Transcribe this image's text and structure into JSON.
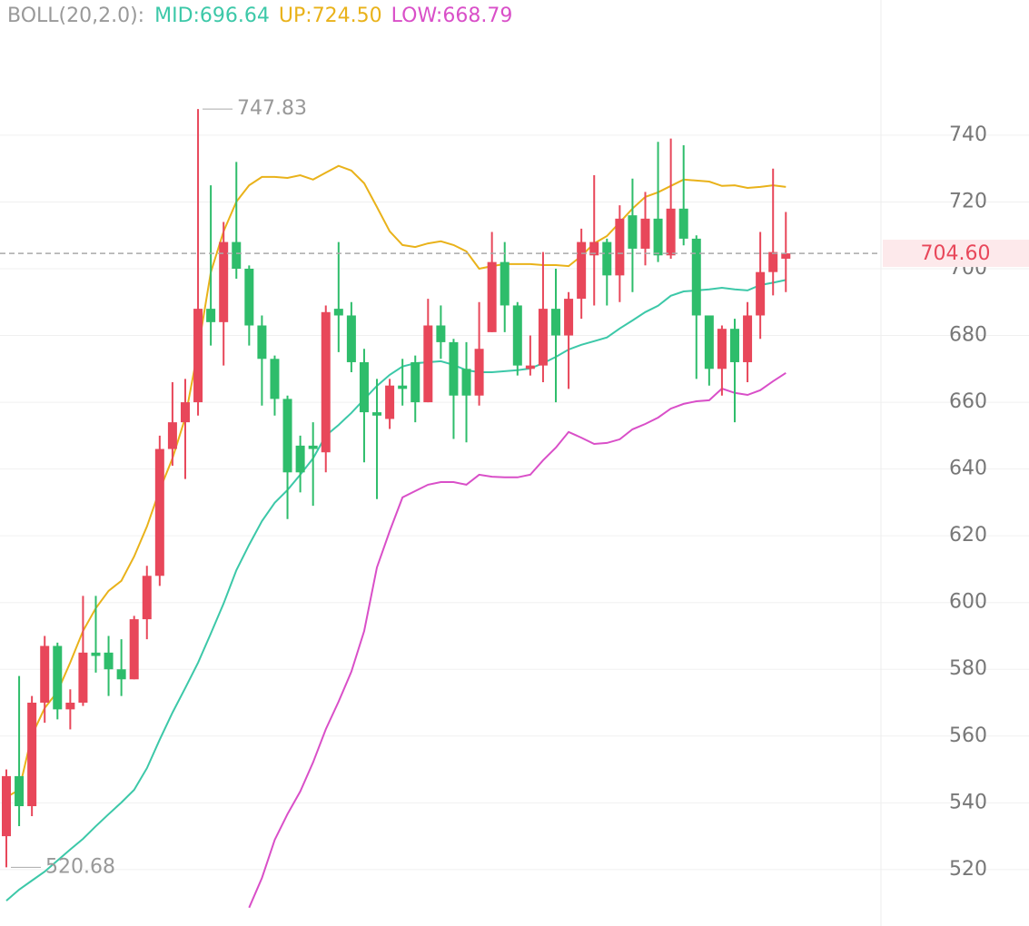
{
  "chart_data": {
    "type": "candlestick",
    "indicator": "BOLL(20,2.0):",
    "ylim": [
      503.1,
      780.5
    ],
    "yticks": [
      520,
      540,
      560,
      580,
      600,
      620,
      640,
      660,
      680,
      700,
      720,
      740
    ],
    "grid": true,
    "up_color": "#e8475a",
    "down_color": "#2ebd6b",
    "open": [
      530,
      548,
      539,
      570,
      587,
      568,
      570,
      585,
      585,
      580,
      577,
      595,
      608,
      646,
      654,
      660,
      688,
      684,
      708,
      700,
      683,
      673,
      661,
      647,
      647,
      645,
      688,
      686,
      672,
      657,
      655,
      665,
      672,
      660,
      683,
      678,
      670,
      662,
      681,
      702,
      689,
      670,
      671,
      688,
      680,
      691,
      704,
      708,
      698,
      716,
      706,
      715,
      704,
      718,
      709,
      686,
      670,
      682,
      672,
      686,
      699,
      703
    ],
    "high": [
      550,
      578,
      572,
      590,
      588,
      574,
      602,
      602,
      590,
      589,
      596,
      611,
      650,
      666,
      667,
      747.83,
      725,
      714,
      732,
      701,
      686,
      674,
      662,
      650,
      654,
      689,
      708,
      690,
      676,
      667,
      667,
      673,
      674,
      691,
      689,
      679,
      678,
      690,
      711,
      708,
      690,
      680,
      705,
      700,
      693,
      712,
      728,
      709,
      719,
      727,
      723,
      738,
      739,
      737,
      710,
      686,
      683,
      685,
      690,
      711,
      730,
      717
    ],
    "low": [
      520.68,
      533,
      536,
      564,
      565,
      562,
      569,
      579,
      572,
      572,
      577,
      589,
      605,
      641,
      637,
      656,
      677,
      671,
      697,
      677,
      659,
      656,
      625,
      633,
      629,
      639,
      675,
      669,
      642,
      631,
      652,
      659,
      654,
      660,
      673,
      649,
      648,
      659,
      681,
      681,
      668,
      668,
      666,
      660,
      664,
      685,
      689,
      689,
      690,
      693,
      701,
      702,
      703,
      707,
      667,
      665,
      662,
      654,
      666,
      679,
      692,
      693
    ],
    "close": [
      548,
      539,
      570,
      587,
      568,
      570,
      585,
      584,
      580,
      577,
      595,
      608,
      646,
      654,
      660,
      688,
      684,
      708,
      700,
      683,
      673,
      661,
      639,
      639,
      646,
      687,
      686,
      672,
      657,
      656,
      665,
      664,
      660,
      683,
      678,
      662,
      662,
      676,
      702,
      689,
      671,
      671,
      688,
      680,
      691,
      708,
      708,
      698,
      715,
      706,
      715,
      704,
      718,
      709,
      686,
      670,
      682,
      672,
      686,
      699,
      705,
      704.6
    ],
    "series": [
      {
        "name": "MID",
        "legend": "MID:696.64",
        "color": "#3cc8a8",
        "values": [
          510.7,
          514,
          516.7,
          519.4,
          522.7,
          526,
          529.2,
          533,
          536.6,
          540.1,
          543.9,
          550.4,
          558.9,
          567,
          574.4,
          582,
          590.7,
          599.7,
          609.7,
          617.3,
          624.4,
          629.9,
          633.7,
          638.3,
          643.2,
          650,
          653.2,
          656.8,
          660.9,
          664.9,
          668.2,
          670.7,
          671.7,
          672,
          672.3,
          671.2,
          669.6,
          669,
          669,
          669.3,
          669.6,
          670.1,
          671.7,
          673.6,
          675.8,
          677.2,
          678.3,
          679.4,
          682.1,
          684.5,
          687,
          688.9,
          691.9,
          693.2,
          693.5,
          693.8,
          694.3,
          693.8,
          693.5,
          695.1,
          695.8,
          696.64
        ]
      },
      {
        "name": "UP",
        "legend": "UP:724.50",
        "color": "#e9b21a",
        "values": [
          541.7,
          543.9,
          560.2,
          568.4,
          573.3,
          582,
          591.5,
          598.3,
          603.5,
          606.5,
          613.8,
          622.8,
          633.7,
          643.2,
          655.4,
          675.8,
          698.9,
          711.2,
          720.1,
          725,
          727.5,
          727.5,
          727.2,
          728,
          726.7,
          728.8,
          730.8,
          729.4,
          725.6,
          718.5,
          711.2,
          707.1,
          706.5,
          707.6,
          708.2,
          707.1,
          705.2,
          700,
          700.8,
          701.4,
          701.4,
          701.4,
          701.1,
          701.1,
          700.8,
          703.8,
          707.6,
          709.8,
          713.9,
          718,
          721.5,
          722.9,
          724.8,
          726.7,
          726.4,
          726.1,
          724.8,
          725,
          724.2,
          724.5,
          725,
          724.5
        ]
      },
      {
        "name": "LOW",
        "legend": "LOW:668.79",
        "color": "#d94fc8",
        "values": [
          null,
          null,
          null,
          null,
          null,
          null,
          null,
          null,
          null,
          null,
          null,
          null,
          null,
          null,
          null,
          null,
          null,
          null,
          null,
          508.6,
          517.5,
          528.9,
          536.6,
          543.4,
          552.1,
          562.1,
          570.3,
          579.3,
          591.5,
          610.5,
          621.4,
          631.5,
          633.4,
          635.3,
          636.1,
          636.1,
          635.3,
          638.3,
          637.7,
          637.5,
          637.5,
          638.3,
          642.6,
          646.4,
          651.1,
          649.4,
          647.5,
          647.8,
          648.9,
          651.9,
          653.5,
          655.4,
          658.1,
          659.5,
          660.3,
          660.6,
          664.1,
          662.8,
          662.2,
          663.6,
          666.3,
          668.79
        ]
      }
    ],
    "high_marker": {
      "index": 15,
      "value": 747.83,
      "label": "747.83"
    },
    "low_marker": {
      "index": 0,
      "value": 520.68,
      "label": "520.68"
    },
    "last_price": {
      "value": 704.6,
      "label": "704.60"
    }
  }
}
